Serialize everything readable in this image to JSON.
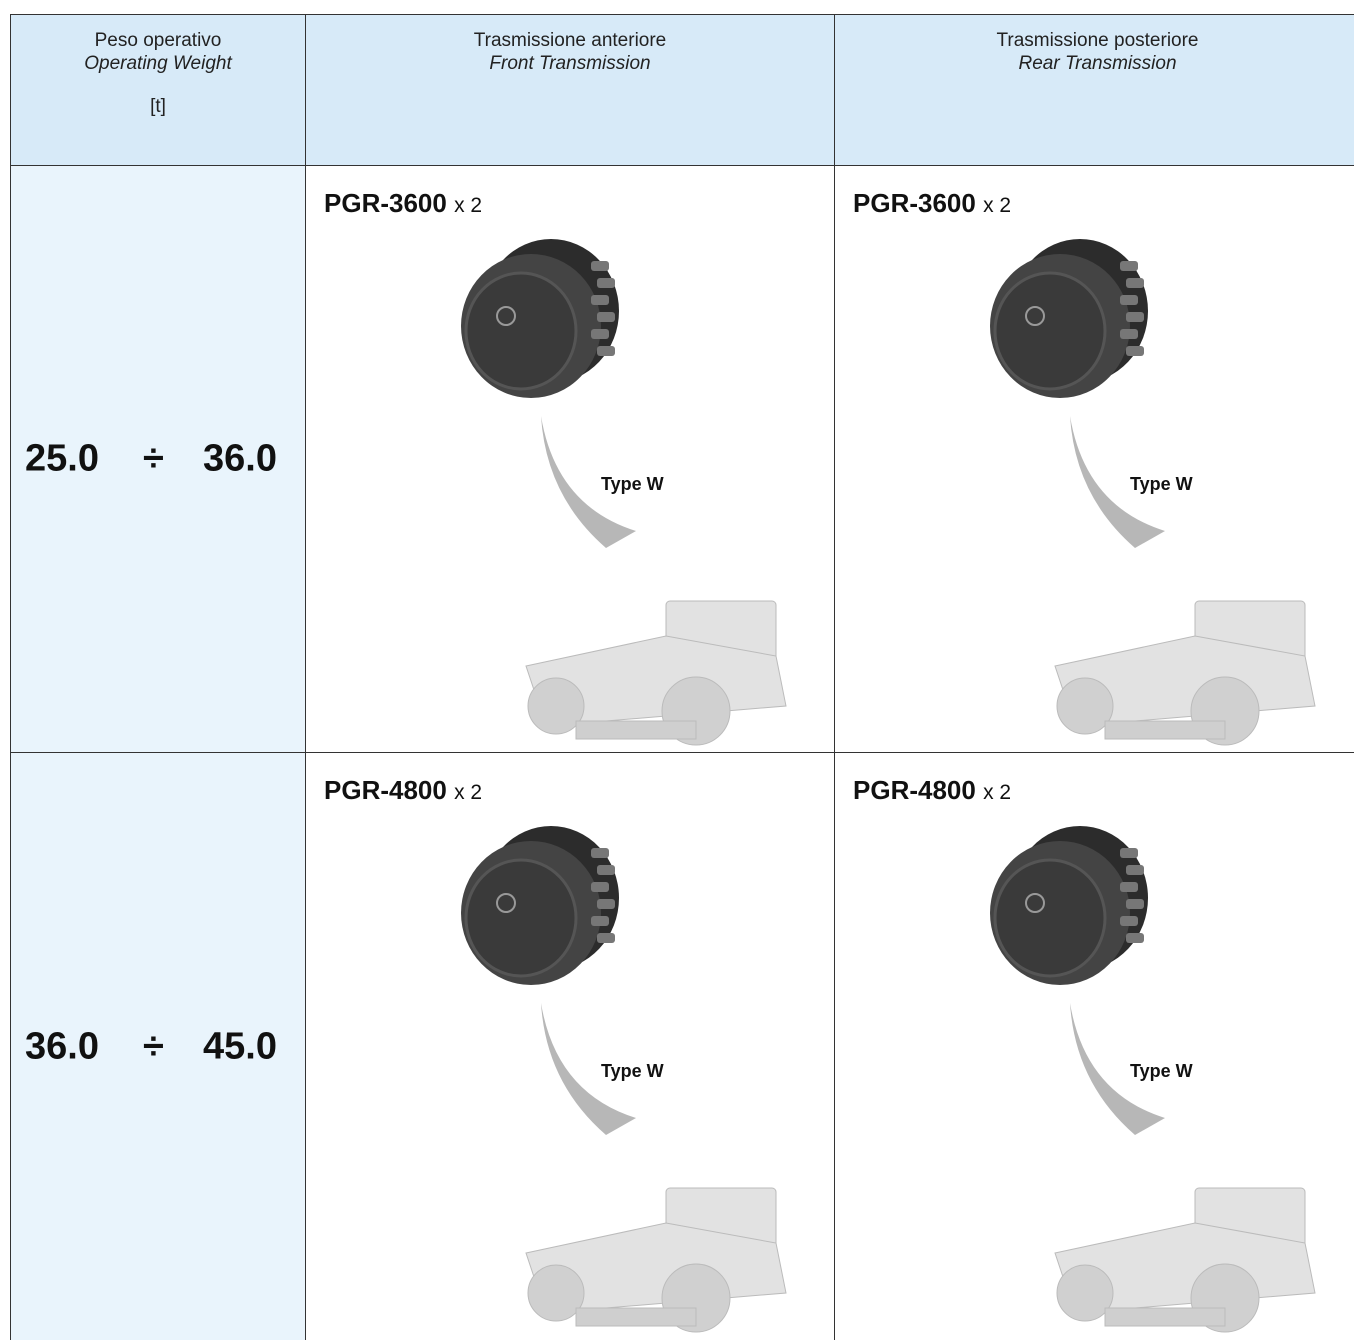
{
  "table": {
    "header": [
      {
        "title": "Peso operativo",
        "subtitle": "Operating Weight",
        "unit": "[t]"
      },
      {
        "title": "Trasmissione anteriore",
        "subtitle": "Front Transmission"
      },
      {
        "title": "Trasmissione posteriore",
        "subtitle": "Rear Transmission"
      }
    ],
    "rows": [
      {
        "weight": {
          "min": "25.0",
          "separator": "÷",
          "max": "36.0"
        },
        "cells": [
          {
            "model": "PGR-3600",
            "quantity": "x 2",
            "type": "Type W"
          },
          {
            "model": "PGR-3600",
            "quantity": "x 2",
            "type": "Type W"
          }
        ]
      },
      {
        "weight": {
          "min": "36.0",
          "separator": "÷",
          "max": "45.0"
        },
        "cells": [
          {
            "model": "PGR-4800",
            "quantity": "x 2",
            "type": "Type W"
          },
          {
            "model": "PGR-4800",
            "quantity": "x 2",
            "type": "Type W"
          }
        ]
      }
    ]
  }
}
